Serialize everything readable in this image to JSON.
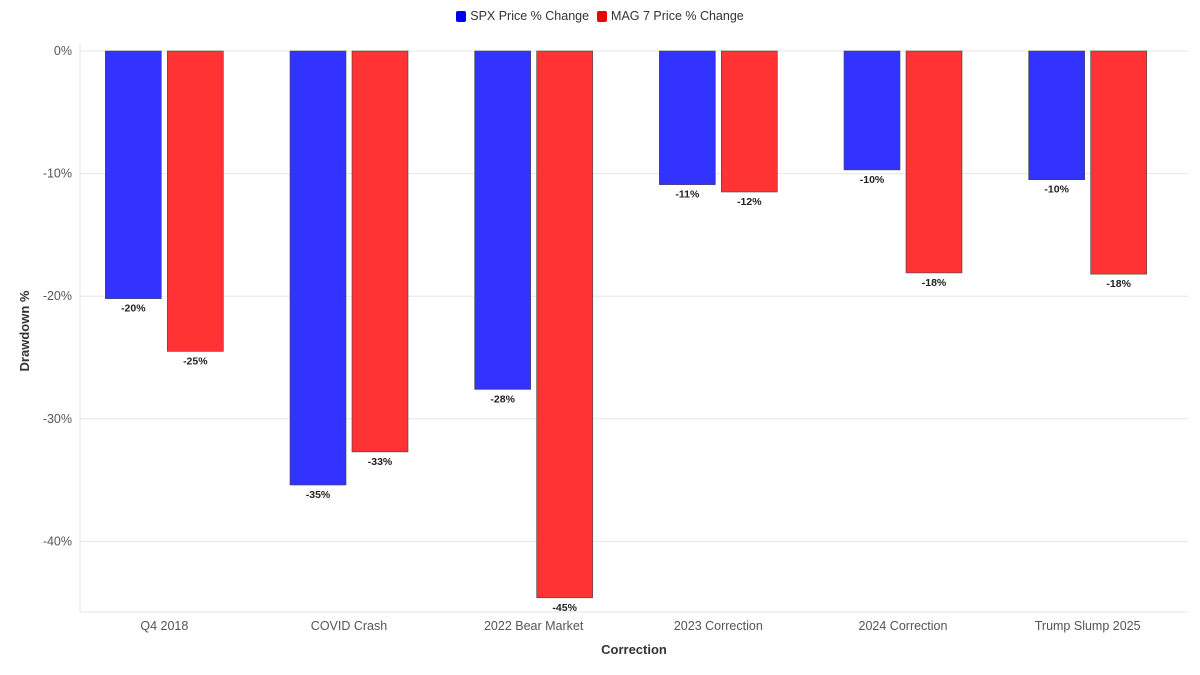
{
  "chart_data": {
    "type": "bar",
    "title": "",
    "xlabel": "Correction",
    "ylabel": "Drawdown %",
    "categories": [
      "Q4 2018",
      "COVID Crash",
      "2022 Bear Market",
      "2023 Correction",
      "2024 Correction",
      "Trump Slump 2025"
    ],
    "series": [
      {
        "name": "SPX Price % Change",
        "color": "#3333ff",
        "legend_color": "#0000ee",
        "values": [
          -20.2,
          -35.4,
          -27.6,
          -10.9,
          -9.7,
          -10.5
        ],
        "labels": [
          "-20%",
          "-35%",
          "-28%",
          "-11%",
          "-10%",
          "-10%"
        ]
      },
      {
        "name": "MAG 7 Price % Change",
        "color": "#ff3333",
        "legend_color": "#ee0000",
        "values": [
          -24.5,
          -32.7,
          -44.6,
          -11.5,
          -18.1,
          -18.2
        ],
        "labels": [
          "-25%",
          "-33%",
          "-45%",
          "-12%",
          "-18%",
          "-18%"
        ]
      }
    ],
    "ylim": [
      -46,
      0
    ],
    "yticks": [
      0,
      -10,
      -20,
      -30,
      -40
    ],
    "ytick_labels": [
      "0%",
      "-10%",
      "-20%",
      "-30%",
      "-40%"
    ],
    "grid": true,
    "legend_position": "top-center"
  }
}
